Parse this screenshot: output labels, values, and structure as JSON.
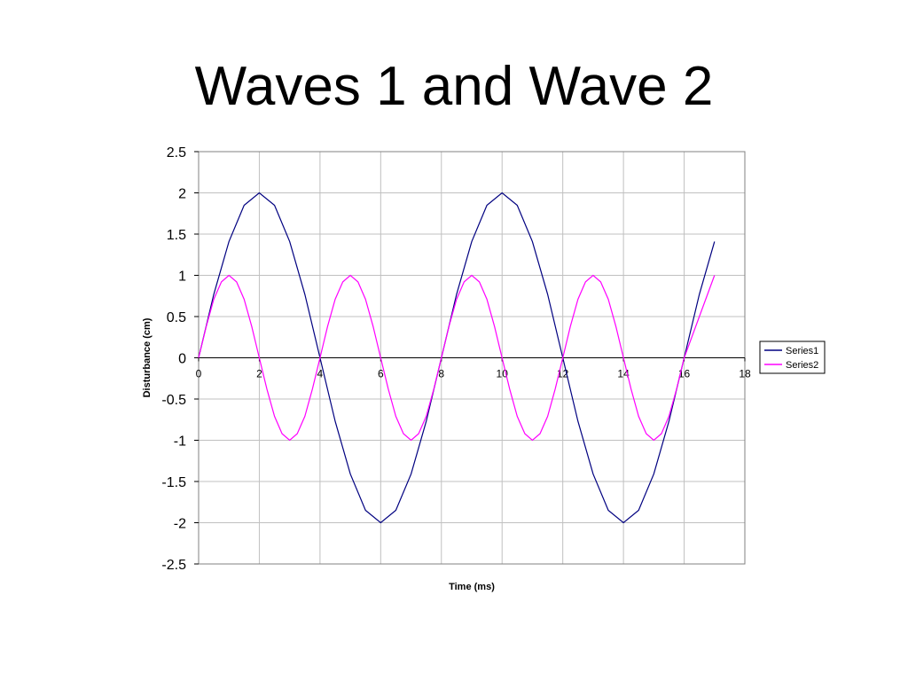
{
  "page": {
    "title": "Waves 1 and Wave 2"
  },
  "chart_data": {
    "type": "line",
    "title": "",
    "xlabel": "Time (ms)",
    "ylabel": "Disturbance (cm)",
    "xlim": [
      0,
      18
    ],
    "ylim": [
      -2.5,
      2.5
    ],
    "xticks": [
      0,
      2,
      4,
      6,
      8,
      10,
      12,
      14,
      16,
      18
    ],
    "yticks": [
      2.5,
      2,
      1.5,
      1,
      0.5,
      0,
      -0.5,
      -1,
      -1.5,
      -2,
      -2.5
    ],
    "grid": true,
    "legend_position": "right",
    "series": [
      {
        "name": "Series1",
        "color": "#000080",
        "x": [
          0,
          0.5,
          1,
          1.5,
          2,
          2.5,
          3,
          3.5,
          4,
          4.5,
          5,
          5.5,
          6,
          6.5,
          7,
          7.5,
          8,
          8.5,
          9,
          9.5,
          10,
          10.5,
          11,
          11.5,
          12,
          12.5,
          13,
          13.5,
          14,
          14.5,
          15,
          15.5,
          16,
          16.5,
          17
        ],
        "values": [
          0,
          0.77,
          1.41,
          1.85,
          2,
          1.85,
          1.41,
          0.77,
          0,
          -0.77,
          -1.41,
          -1.85,
          -2,
          -1.85,
          -1.41,
          -0.77,
          0,
          0.77,
          1.41,
          1.85,
          2,
          1.85,
          1.41,
          0.77,
          0,
          -0.77,
          -1.41,
          -1.85,
          -2,
          -1.85,
          -1.41,
          -0.77,
          0,
          0.77,
          1.41
        ]
      },
      {
        "name": "Series2",
        "color": "#FF00FF",
        "x": [
          0,
          0.25,
          0.5,
          0.75,
          1,
          1.25,
          1.5,
          1.75,
          2,
          2.25,
          2.5,
          2.75,
          3,
          3.25,
          3.5,
          3.75,
          4,
          4.25,
          4.5,
          4.75,
          5,
          5.25,
          5.5,
          5.75,
          6,
          6.25,
          6.5,
          6.75,
          7,
          7.25,
          7.5,
          7.75,
          8,
          8.25,
          8.5,
          8.75,
          9,
          9.25,
          9.5,
          9.75,
          10,
          10.25,
          10.5,
          10.75,
          11,
          11.25,
          11.5,
          11.75,
          12,
          12.25,
          12.5,
          12.75,
          13,
          13.25,
          13.5,
          13.75,
          14,
          14.25,
          14.5,
          14.75,
          15,
          15.25,
          15.5,
          15.75,
          16,
          16.5,
          17
        ],
        "values": [
          0,
          0.38,
          0.71,
          0.92,
          1,
          0.92,
          0.71,
          0.38,
          0,
          -0.38,
          -0.71,
          -0.92,
          -1,
          -0.92,
          -0.71,
          -0.38,
          0,
          0.38,
          0.71,
          0.92,
          1,
          0.92,
          0.71,
          0.38,
          0,
          -0.38,
          -0.71,
          -0.92,
          -1,
          -0.92,
          -0.71,
          -0.38,
          0,
          0.38,
          0.71,
          0.92,
          1,
          0.92,
          0.71,
          0.38,
          0,
          -0.38,
          -0.71,
          -0.92,
          -1,
          -0.92,
          -0.71,
          -0.38,
          0,
          0.38,
          0.71,
          0.92,
          1,
          0.92,
          0.71,
          0.38,
          0,
          -0.38,
          -0.71,
          -0.92,
          -1,
          -0.92,
          -0.71,
          -0.38,
          0,
          0.5,
          1
        ]
      }
    ]
  }
}
